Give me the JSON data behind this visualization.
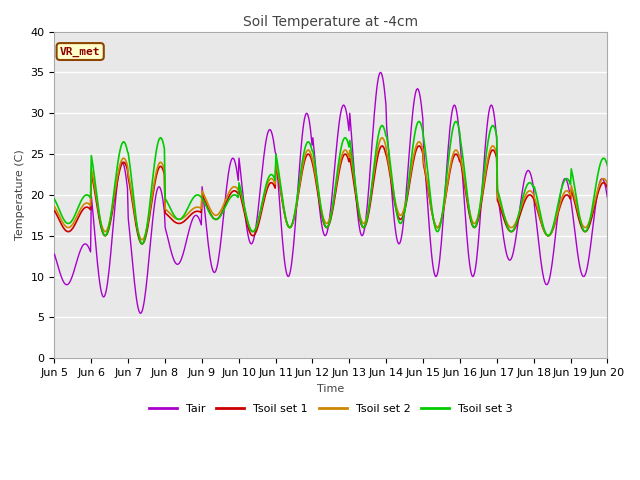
{
  "title": "Soil Temperature at -4cm",
  "xlabel": "Time",
  "ylabel": "Temperature (C)",
  "ylim": [
    0,
    40
  ],
  "figure_bg": "#ffffff",
  "plot_bg": "#e8e8e8",
  "grid_color": "#ffffff",
  "annotation_text": "VR_met",
  "annotation_bg": "#ffffcc",
  "annotation_border": "#8B4500",
  "annotation_text_color": "#8B0000",
  "line_colors": {
    "Tair": "#aa00cc",
    "Tsoil1": "#cc0000",
    "Tsoil2": "#cc8800",
    "Tsoil3": "#00cc00"
  },
  "legend_labels": [
    "Tair",
    "Tsoil set 1",
    "Tsoil set 2",
    "Tsoil set 3"
  ],
  "x_tick_labels": [
    "Jun 5",
    "Jun 6",
    "Jun 7",
    "Jun 8",
    "Jun 9",
    "Jun 10",
    "Jun 11",
    "Jun 12",
    "Jun 13",
    "Jun 14",
    "Jun 15",
    "Jun 16",
    "Jun 17",
    "Jun 18",
    "Jun 19",
    "Jun 20"
  ],
  "n_days": 15,
  "pts_per_day": 48,
  "title_fontsize": 10,
  "label_fontsize": 8,
  "tick_fontsize": 8,
  "annot_fontsize": 8,
  "legend_fontsize": 8
}
